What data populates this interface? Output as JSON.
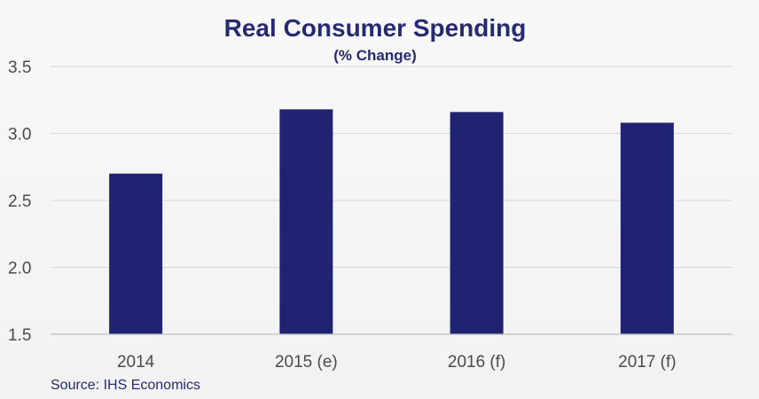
{
  "chart_data": {
    "type": "bar",
    "title": "Real Consumer Spending",
    "subtitle": "(% Change)",
    "categories": [
      "2014",
      "2015 (e)",
      "2016 (f)",
      "2017 (f)"
    ],
    "values": [
      2.7,
      3.18,
      3.16,
      3.08
    ],
    "ylim": [
      1.5,
      3.5
    ],
    "yticks": [
      "1.5",
      "2.0",
      "2.5",
      "3.0",
      "3.5"
    ],
    "ytick_values": [
      1.5,
      2.0,
      2.5,
      3.0,
      3.5
    ],
    "grid": true,
    "bar_color": "#1f2372",
    "source": "Source: IHS Economics"
  }
}
